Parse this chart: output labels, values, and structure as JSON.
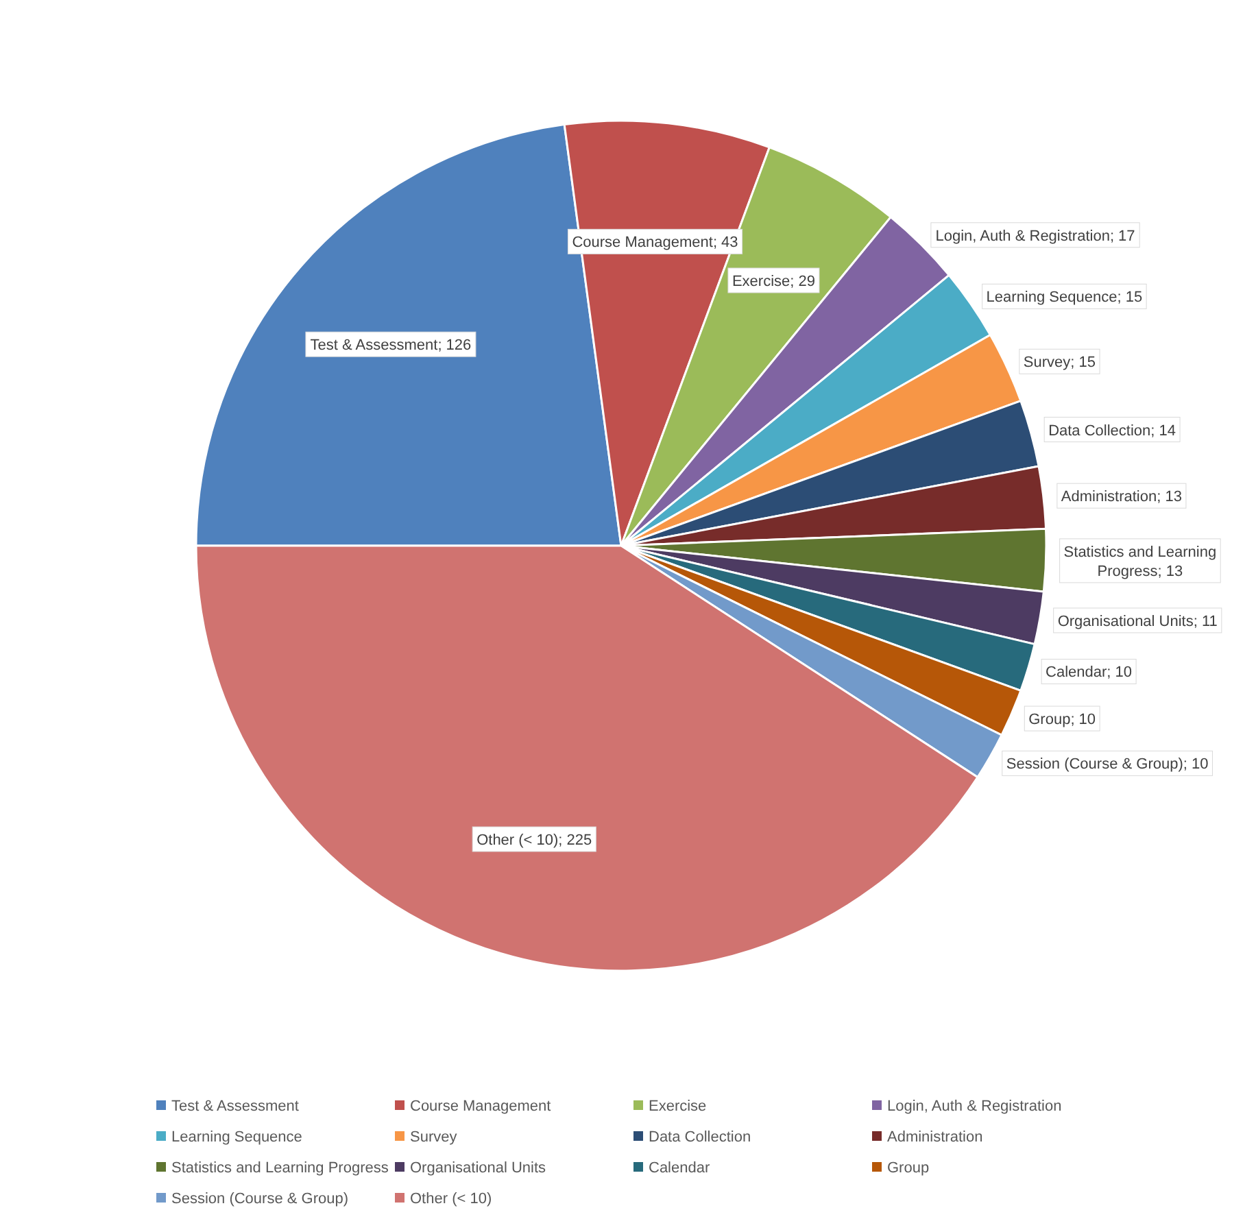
{
  "chart_data": {
    "type": "pie",
    "categories": [
      "Test & Assessment",
      "Course Management",
      "Exercise",
      "Login, Auth & Registration",
      "Learning Sequence",
      "Survey",
      "Data Collection",
      "Administration",
      "Statistics and Learning Progress",
      "Organisational Units",
      "Calendar",
      "Group",
      "Session (Course & Group)",
      "Other (< 10)"
    ],
    "values": [
      126,
      43,
      29,
      17,
      15,
      15,
      14,
      13,
      13,
      11,
      10,
      10,
      10,
      225
    ],
    "value_labels": [
      "Test & Assessment; 126",
      "Course Management; 43",
      "Exercise; 29",
      "Login, Auth & Registration; 17",
      "Learning Sequence; 15",
      "Survey; 15",
      "Data Collection; 14",
      "Administration; 13",
      "Statistics and Learning Progress; 13",
      "Organisational Units; 11",
      "Calendar; 10",
      "Group; 10",
      "Session (Course & Group); 10",
      "Other (< 10); 225"
    ],
    "colors": [
      "#4f81bd",
      "#c0504d",
      "#9bbb59",
      "#8064a2",
      "#4bacc6",
      "#f79646",
      "#2c4d75",
      "#772c2a",
      "#5f7530",
      "#4d3b62",
      "#276a7c",
      "#b65708",
      "#729aca",
      "#d07370"
    ],
    "legend": "bottom"
  }
}
